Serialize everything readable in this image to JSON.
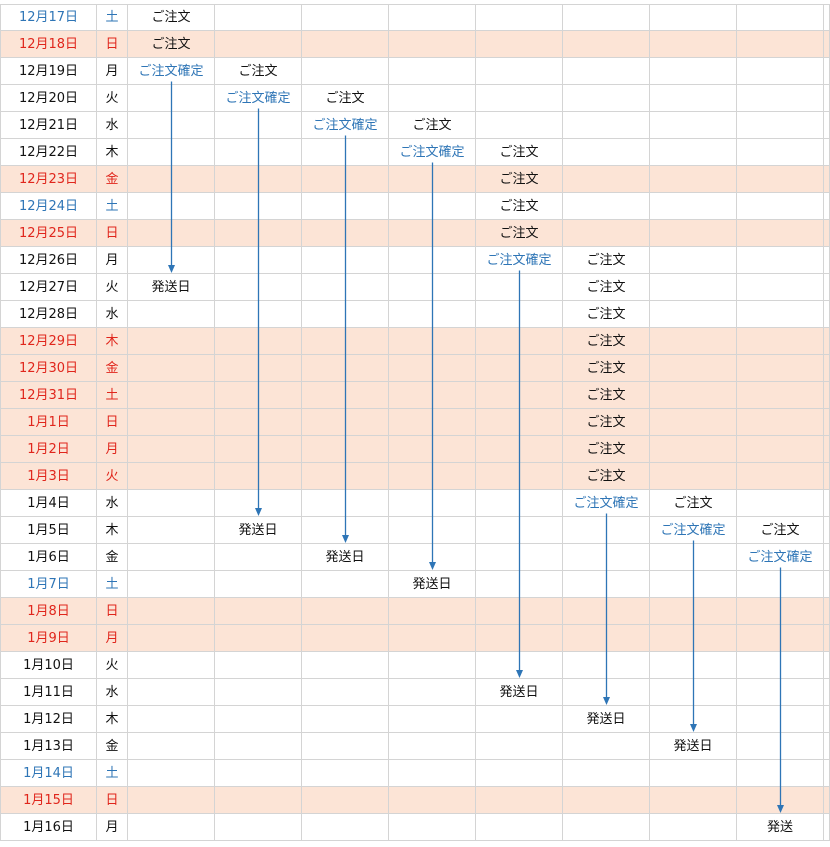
{
  "colors": {
    "grid": "#d4d4d4",
    "holiday_bg": "#fce4d6",
    "holiday_text": "#e0261c",
    "saturday_text": "#2e75b6",
    "confirm_text": "#2e75b6",
    "arrow": "#2e75b6"
  },
  "rows": [
    {
      "date": "12月17日",
      "weekday": "土",
      "type": "saturday",
      "cells": [
        "ご注文",
        "",
        "",
        "",
        "",
        "",
        "",
        ""
      ]
    },
    {
      "date": "12月18日",
      "weekday": "日",
      "type": "holiday",
      "cells": [
        "ご注文",
        "",
        "",
        "",
        "",
        "",
        "",
        ""
      ]
    },
    {
      "date": "12月19日",
      "weekday": "月",
      "type": "weekday",
      "cells": [
        "ご注文確定",
        "ご注文",
        "",
        "",
        "",
        "",
        "",
        ""
      ]
    },
    {
      "date": "12月20日",
      "weekday": "火",
      "type": "weekday",
      "cells": [
        "",
        "ご注文確定",
        "ご注文",
        "",
        "",
        "",
        "",
        ""
      ]
    },
    {
      "date": "12月21日",
      "weekday": "水",
      "type": "weekday",
      "cells": [
        "",
        "",
        "ご注文確定",
        "ご注文",
        "",
        "",
        "",
        ""
      ]
    },
    {
      "date": "12月22日",
      "weekday": "木",
      "type": "weekday",
      "cells": [
        "",
        "",
        "",
        "ご注文確定",
        "ご注文",
        "",
        "",
        ""
      ]
    },
    {
      "date": "12月23日",
      "weekday": "金",
      "type": "holiday",
      "cells": [
        "",
        "",
        "",
        "",
        "ご注文",
        "",
        "",
        ""
      ]
    },
    {
      "date": "12月24日",
      "weekday": "土",
      "type": "saturday",
      "cells": [
        "",
        "",
        "",
        "",
        "ご注文",
        "",
        "",
        ""
      ]
    },
    {
      "date": "12月25日",
      "weekday": "日",
      "type": "holiday",
      "cells": [
        "",
        "",
        "",
        "",
        "ご注文",
        "",
        "",
        ""
      ]
    },
    {
      "date": "12月26日",
      "weekday": "月",
      "type": "weekday",
      "cells": [
        "",
        "",
        "",
        "",
        "ご注文確定",
        "ご注文",
        "",
        ""
      ]
    },
    {
      "date": "12月27日",
      "weekday": "火",
      "type": "weekday",
      "cells": [
        "発送日",
        "",
        "",
        "",
        "",
        "ご注文",
        "",
        ""
      ]
    },
    {
      "date": "12月28日",
      "weekday": "水",
      "type": "weekday",
      "cells": [
        "",
        "",
        "",
        "",
        "",
        "ご注文",
        "",
        ""
      ]
    },
    {
      "date": "12月29日",
      "weekday": "木",
      "type": "holiday",
      "cells": [
        "",
        "",
        "",
        "",
        "",
        "ご注文",
        "",
        ""
      ]
    },
    {
      "date": "12月30日",
      "weekday": "金",
      "type": "holiday",
      "cells": [
        "",
        "",
        "",
        "",
        "",
        "ご注文",
        "",
        ""
      ]
    },
    {
      "date": "12月31日",
      "weekday": "土",
      "type": "holiday",
      "cells": [
        "",
        "",
        "",
        "",
        "",
        "ご注文",
        "",
        ""
      ]
    },
    {
      "date": "1月1日",
      "weekday": "日",
      "type": "holiday",
      "cells": [
        "",
        "",
        "",
        "",
        "",
        "ご注文",
        "",
        ""
      ]
    },
    {
      "date": "1月2日",
      "weekday": "月",
      "type": "holiday",
      "cells": [
        "",
        "",
        "",
        "",
        "",
        "ご注文",
        "",
        ""
      ]
    },
    {
      "date": "1月3日",
      "weekday": "火",
      "type": "holiday",
      "cells": [
        "",
        "",
        "",
        "",
        "",
        "ご注文",
        "",
        ""
      ]
    },
    {
      "date": "1月4日",
      "weekday": "水",
      "type": "weekday",
      "cells": [
        "",
        "",
        "",
        "",
        "",
        "ご注文確定",
        "ご注文",
        ""
      ]
    },
    {
      "date": "1月5日",
      "weekday": "木",
      "type": "weekday",
      "cells": [
        "",
        "発送日",
        "",
        "",
        "",
        "",
        "ご注文確定",
        "ご注文"
      ]
    },
    {
      "date": "1月6日",
      "weekday": "金",
      "type": "weekday",
      "cells": [
        "",
        "",
        "発送日",
        "",
        "",
        "",
        "",
        "ご注文確定"
      ]
    },
    {
      "date": "1月7日",
      "weekday": "土",
      "type": "saturday",
      "cells": [
        "",
        "",
        "",
        "発送日",
        "",
        "",
        "",
        ""
      ]
    },
    {
      "date": "1月8日",
      "weekday": "日",
      "type": "holiday",
      "cells": [
        "",
        "",
        "",
        "",
        "",
        "",
        "",
        ""
      ]
    },
    {
      "date": "1月9日",
      "weekday": "月",
      "type": "holiday",
      "cells": [
        "",
        "",
        "",
        "",
        "",
        "",
        "",
        ""
      ]
    },
    {
      "date": "1月10日",
      "weekday": "火",
      "type": "weekday",
      "cells": [
        "",
        "",
        "",
        "",
        "",
        "",
        "",
        ""
      ]
    },
    {
      "date": "1月11日",
      "weekday": "水",
      "type": "weekday",
      "cells": [
        "",
        "",
        "",
        "",
        "発送日",
        "",
        "",
        ""
      ]
    },
    {
      "date": "1月12日",
      "weekday": "木",
      "type": "weekday",
      "cells": [
        "",
        "",
        "",
        "",
        "",
        "発送日",
        "",
        ""
      ]
    },
    {
      "date": "1月13日",
      "weekday": "金",
      "type": "weekday",
      "cells": [
        "",
        "",
        "",
        "",
        "",
        "",
        "発送日",
        ""
      ]
    },
    {
      "date": "1月14日",
      "weekday": "土",
      "type": "saturday",
      "cells": [
        "",
        "",
        "",
        "",
        "",
        "",
        "",
        ""
      ]
    },
    {
      "date": "1月15日",
      "weekday": "日",
      "type": "holiday",
      "cells": [
        "",
        "",
        "",
        "",
        "",
        "",
        "",
        ""
      ]
    },
    {
      "date": "1月16日",
      "weekday": "月",
      "type": "weekday",
      "cells": [
        "",
        "",
        "",
        "",
        "",
        "",
        "",
        "発送"
      ]
    }
  ]
}
